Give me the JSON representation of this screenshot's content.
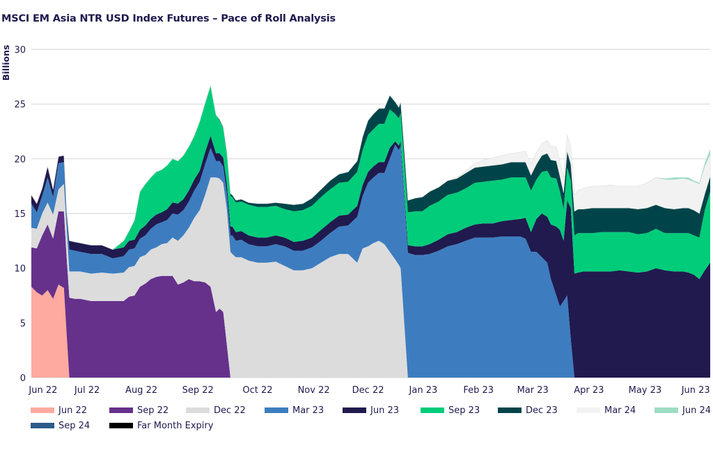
{
  "chart_data": {
    "type": "area",
    "stacked": true,
    "title": "MSCI EM Asia NTR USD Index Futures – Pace of Roll Analysis",
    "xlabel": "",
    "ylabel": "Billions",
    "ylim": [
      0,
      30
    ],
    "yticks": [
      0,
      5,
      10,
      15,
      20,
      25,
      30
    ],
    "grid": true,
    "legend_position": "bottom",
    "x_unit": "days since chart start (approx. early Jun 2022)",
    "xlim": [
      0,
      375
    ],
    "xticks": [
      {
        "label": "Jun 22",
        "x": 6.5
      },
      {
        "label": "Jul 22",
        "x": 30.8
      },
      {
        "label": "Aug 22",
        "x": 60.8
      },
      {
        "label": "Sep 22",
        "x": 92
      },
      {
        "label": "Oct 22",
        "x": 125
      },
      {
        "label": "Nov 22",
        "x": 156
      },
      {
        "label": "Dec 22",
        "x": 186
      },
      {
        "label": "Jan 23",
        "x": 216.5
      },
      {
        "label": "Feb 23",
        "x": 247
      },
      {
        "label": "Mar 23",
        "x": 277
      },
      {
        "label": "Apr 23",
        "x": 308
      },
      {
        "label": "May 23",
        "x": 339
      },
      {
        "label": "Jun 23",
        "x": 367
      }
    ],
    "x": [
      0,
      3,
      6,
      9,
      12,
      15,
      18,
      19.5,
      21,
      24,
      27,
      33,
      39,
      45,
      51,
      54,
      57,
      60,
      63,
      66,
      69,
      72,
      75,
      78,
      81,
      84,
      87,
      90,
      93,
      96,
      99,
      102,
      104,
      106,
      108,
      110,
      111,
      113,
      116,
      120,
      125,
      130,
      135,
      140,
      145,
      150,
      155,
      160,
      165,
      170,
      175,
      180,
      183,
      186,
      189,
      192,
      195,
      198,
      201,
      203,
      204,
      206,
      208,
      212,
      216,
      220,
      225,
      230,
      235,
      240,
      245,
      250,
      255,
      260,
      265,
      270,
      273,
      276,
      279,
      282,
      285,
      287,
      290,
      292,
      294,
      296,
      298,
      300,
      302,
      305,
      310,
      315,
      320,
      325,
      330,
      335,
      340,
      345,
      350,
      355,
      360,
      363,
      366,
      369,
      372,
      375
    ],
    "series": [
      {
        "name": "Jun 22",
        "color": "#ffaaa0",
        "values": [
          8.3,
          7.8,
          7.5,
          8.0,
          7.2,
          8.5,
          8.2,
          4.0,
          0,
          0,
          0,
          0,
          0,
          0,
          0,
          0,
          0,
          0,
          0,
          0,
          0,
          0,
          0,
          0,
          0,
          0,
          0,
          0,
          0,
          0,
          0,
          0,
          0,
          0,
          0,
          0,
          0,
          0,
          0,
          0,
          0,
          0,
          0,
          0,
          0,
          0,
          0,
          0,
          0,
          0,
          0,
          0,
          0,
          0,
          0,
          0,
          0,
          0,
          0,
          0,
          0,
          0,
          0,
          0,
          0,
          0,
          0,
          0,
          0,
          0,
          0,
          0,
          0,
          0,
          0,
          0,
          0,
          0,
          0,
          0,
          0,
          0,
          0,
          0,
          0,
          0,
          0,
          0,
          0,
          0,
          0,
          0,
          0,
          0,
          0,
          0,
          0,
          0,
          0,
          0,
          0,
          0,
          0,
          0,
          0,
          0
        ]
      },
      {
        "name": "Sep 22",
        "color": "#65318b",
        "values": [
          3.6,
          4.0,
          5.5,
          6.0,
          5.5,
          6.7,
          7.0,
          7.0,
          7.3,
          7.2,
          7.2,
          7.0,
          7.0,
          7.0,
          7.0,
          7.4,
          7.5,
          8.3,
          8.6,
          9.0,
          9.2,
          9.3,
          9.3,
          9.3,
          8.5,
          8.7,
          9.0,
          8.8,
          8.8,
          8.7,
          8.3,
          6.0,
          6.3,
          6.0,
          3.0,
          0,
          0,
          0,
          0,
          0,
          0,
          0,
          0,
          0,
          0,
          0,
          0,
          0,
          0,
          0,
          0,
          0,
          0,
          0,
          0,
          0,
          0,
          0,
          0,
          0,
          0,
          0,
          0,
          0,
          0,
          0,
          0,
          0,
          0,
          0,
          0,
          0,
          0,
          0,
          0,
          0,
          0,
          0,
          0,
          0,
          0,
          0,
          0,
          0,
          0,
          0,
          0,
          0,
          0,
          0,
          0,
          0,
          0,
          0,
          0,
          0,
          0,
          0,
          0,
          0,
          0,
          0,
          0,
          0,
          0,
          0
        ]
      },
      {
        "name": "Dec 22",
        "color": "#dcdcdc",
        "values": [
          1.8,
          1.8,
          2.0,
          2.0,
          2.2,
          2.0,
          2.5,
          2.7,
          2.4,
          2.5,
          2.5,
          2.5,
          2.6,
          2.5,
          2.6,
          2.7,
          2.7,
          2.7,
          2.6,
          2.7,
          2.7,
          2.9,
          3.0,
          3.5,
          4.0,
          4.3,
          4.7,
          5.8,
          6.5,
          8.0,
          10.0,
          12.3,
          11.9,
          11.8,
          12.4,
          11.5,
          11.3,
          11.0,
          11.0,
          10.7,
          10.5,
          10.5,
          10.6,
          10.2,
          9.8,
          9.8,
          10.0,
          10.5,
          11.0,
          11.3,
          11.3,
          10.5,
          11.8,
          12.0,
          12.3,
          12.5,
          12.2,
          11.5,
          10.8,
          10.3,
          10.0,
          5.0,
          0,
          0,
          0,
          0,
          0,
          0,
          0,
          0,
          0,
          0,
          0,
          0,
          0,
          0,
          0,
          0,
          0,
          0,
          0,
          0,
          0,
          0,
          0,
          0,
          0,
          0,
          0,
          0,
          0,
          0,
          0,
          0,
          0,
          0,
          0,
          0,
          0,
          0,
          0,
          0,
          0,
          0,
          0,
          0
        ]
      },
      {
        "name": "Mar 23",
        "color": "#3d7dbf",
        "values": [
          2.2,
          1.5,
          1.6,
          2.3,
          1.6,
          2.4,
          2.0,
          1.0,
          2.0,
          1.9,
          1.8,
          1.8,
          1.7,
          1.4,
          1.5,
          1.6,
          1.6,
          1.7,
          1.8,
          1.9,
          2.1,
          2.0,
          2.1,
          2.2,
          2.4,
          2.3,
          2.4,
          2.5,
          2.6,
          2.8,
          2.7,
          1.5,
          1.6,
          1.5,
          1.5,
          1.5,
          1.7,
          1.5,
          1.6,
          1.5,
          1.5,
          1.5,
          1.6,
          1.8,
          1.8,
          1.8,
          1.9,
          2.0,
          2.2,
          2.5,
          2.6,
          4.2,
          4.8,
          5.8,
          6.0,
          6.2,
          6.5,
          8.5,
          10.5,
          10.5,
          11.2,
          11.5,
          11.4,
          11.2,
          11.2,
          11.3,
          11.6,
          12.0,
          12.2,
          12.5,
          12.8,
          12.8,
          12.8,
          12.9,
          12.9,
          12.9,
          12.7,
          11.5,
          11.5,
          11.0,
          10.5,
          9.0,
          7.5,
          6.5,
          7.0,
          7.5,
          3.5,
          0,
          0,
          0,
          0,
          0,
          0,
          0,
          0,
          0,
          0,
          0,
          0,
          0,
          0,
          0,
          0,
          0,
          0,
          0
        ]
      },
      {
        "name": "Jun 23",
        "color": "#201a4f",
        "values": [
          0.8,
          0.8,
          0.7,
          1.0,
          0.7,
          0.6,
          0.6,
          0.5,
          0.8,
          0.8,
          0.8,
          0.8,
          0.8,
          0.8,
          0.8,
          0.8,
          0.8,
          0.8,
          0.9,
          0.9,
          0.9,
          0.9,
          1.0,
          1.0,
          1.0,
          1.0,
          1.0,
          1.0,
          1.0,
          1.1,
          1.1,
          0.7,
          0.7,
          0.8,
          0.8,
          0.8,
          0.8,
          0.8,
          0.8,
          0.8,
          0.8,
          0.8,
          0.8,
          0.8,
          0.8,
          0.9,
          0.9,
          1.0,
          1.0,
          1.0,
          1.0,
          1.0,
          1.0,
          1.0,
          1.0,
          1.0,
          1.0,
          1.0,
          0.3,
          0.4,
          0.4,
          0.4,
          0.7,
          0.8,
          0.8,
          0.9,
          1.0,
          1.1,
          1.1,
          1.2,
          1.2,
          1.3,
          1.3,
          1.4,
          1.5,
          1.6,
          1.9,
          1.8,
          3.0,
          4.0,
          4.2,
          5.0,
          6.3,
          7.0,
          5.5,
          8.7,
          12.0,
          9.5,
          9.6,
          9.7,
          9.7,
          9.7,
          9.7,
          9.8,
          9.7,
          9.6,
          9.7,
          10.0,
          9.8,
          9.7,
          9.7,
          9.6,
          9.4,
          9.0,
          9.8,
          10.5
        ]
      },
      {
        "name": "Sep 23",
        "color": "#00cc7a",
        "values": [
          0,
          0,
          0,
          0,
          0,
          0,
          0,
          0,
          0,
          0,
          0,
          0,
          0,
          0,
          0.6,
          0.9,
          1.8,
          3.5,
          3.8,
          3.8,
          3.9,
          3.9,
          4.0,
          4.0,
          3.9,
          4.0,
          4.0,
          4.0,
          4.5,
          4.5,
          4.6,
          3.5,
          3.0,
          2.7,
          2.7,
          2.8,
          2.7,
          2.7,
          2.7,
          2.8,
          2.8,
          2.8,
          2.7,
          2.6,
          2.8,
          2.8,
          2.9,
          3.0,
          3.0,
          3.0,
          3.0,
          3.1,
          3.2,
          3.4,
          3.4,
          3.5,
          3.5,
          3.5,
          2.5,
          2.5,
          2.6,
          2.8,
          3.0,
          3.2,
          3.2,
          3.5,
          3.5,
          3.6,
          3.6,
          3.6,
          3.8,
          3.8,
          3.9,
          3.8,
          3.9,
          3.8,
          3.7,
          3.8,
          3.6,
          3.8,
          4.2,
          4.3,
          4.4,
          3.5,
          2.9,
          3.0,
          2.5,
          3.5,
          3.6,
          3.5,
          3.5,
          3.6,
          3.6,
          3.5,
          3.6,
          3.5,
          3.5,
          3.6,
          3.4,
          3.5,
          3.5,
          3.6,
          3.6,
          3.8,
          5.5,
          6.5
        ]
      },
      {
        "name": "Dec 23",
        "color": "#004449",
        "values": [
          0,
          0,
          0,
          0,
          0,
          0,
          0,
          0,
          0,
          0,
          0,
          0,
          0,
          0,
          0,
          0,
          0,
          0,
          0,
          0,
          0,
          0,
          0,
          0,
          0,
          0,
          0,
          0,
          0,
          0,
          0,
          0,
          0.1,
          0.1,
          0.2,
          0.2,
          0.2,
          0.2,
          0.2,
          0.2,
          0.3,
          0.3,
          0.3,
          0.5,
          0.6,
          0.6,
          0.7,
          0.7,
          0.8,
          0.8,
          0.9,
          1.0,
          1.2,
          1.3,
          1.4,
          1.4,
          1.4,
          1.3,
          1.1,
          1.0,
          1.0,
          1.1,
          1.1,
          1.2,
          1.3,
          1.3,
          1.3,
          1.3,
          1.3,
          1.4,
          1.4,
          1.4,
          1.4,
          1.4,
          1.4,
          1.4,
          1.4,
          1.4,
          1.4,
          1.5,
          1.6,
          1.6,
          1.6,
          1.4,
          1.5,
          1.5,
          1.5,
          2.2,
          2.2,
          2.2,
          2.3,
          2.2,
          2.2,
          2.2,
          2.2,
          2.3,
          2.3,
          2.2,
          2.3,
          2.2,
          2.3,
          2.3,
          2.3,
          2.2,
          1.5,
          1.4
        ]
      },
      {
        "name": "Mar 24",
        "color": "#f2f2f2",
        "values": [
          0,
          0,
          0,
          0,
          0,
          0,
          0,
          0,
          0,
          0,
          0,
          0,
          0,
          0,
          0,
          0,
          0,
          0,
          0,
          0,
          0,
          0,
          0,
          0,
          0,
          0,
          0,
          0,
          0,
          0,
          0,
          0,
          0,
          0,
          0,
          0,
          0,
          0,
          0,
          0,
          0,
          0,
          0,
          0,
          0,
          0,
          0,
          0,
          0,
          0,
          0,
          0,
          0,
          0,
          0,
          0,
          0,
          0,
          0,
          0,
          0,
          0,
          0,
          0,
          0,
          0,
          0,
          0,
          0.1,
          0.2,
          0.4,
          0.6,
          0.7,
          0.8,
          0.8,
          0.9,
          1.0,
          1.0,
          1.1,
          1.1,
          1.2,
          1.3,
          1.3,
          1.3,
          1.4,
          1.5,
          1.6,
          1.5,
          1.7,
          1.9,
          2.0,
          2.0,
          2.1,
          2.0,
          2.0,
          2.1,
          2.3,
          2.5,
          2.6,
          2.7,
          2.7,
          2.6,
          2.6,
          2.7,
          2.5,
          2.0
        ]
      },
      {
        "name": "Jun 24",
        "color": "#9fdcc4",
        "values": [
          0,
          0,
          0,
          0,
          0,
          0,
          0,
          0,
          0,
          0,
          0,
          0,
          0,
          0,
          0,
          0,
          0,
          0,
          0,
          0,
          0,
          0,
          0,
          0,
          0,
          0,
          0,
          0,
          0,
          0,
          0,
          0,
          0,
          0,
          0,
          0,
          0,
          0,
          0,
          0,
          0,
          0,
          0,
          0,
          0,
          0,
          0,
          0,
          0,
          0,
          0,
          0,
          0,
          0,
          0,
          0,
          0,
          0,
          0,
          0,
          0,
          0,
          0,
          0,
          0,
          0,
          0,
          0,
          0,
          0,
          0,
          0,
          0,
          0,
          0,
          0,
          0,
          0,
          0,
          0,
          0,
          0,
          0,
          0,
          0,
          0,
          0,
          0,
          0,
          0,
          0,
          0,
          0,
          0,
          0,
          0,
          0,
          0,
          0.1,
          0.2,
          0.1,
          0.2,
          0.1,
          0.1,
          0.3,
          0.5
        ]
      },
      {
        "name": "Sep 24",
        "color": "#2b5c8a",
        "values": []
      },
      {
        "name": "Far Month Expiry",
        "color": "#000000",
        "values": []
      }
    ]
  },
  "legend": {
    "items": [
      {
        "label": "Jun 22",
        "color": "#ffaaa0"
      },
      {
        "label": "Sep 22",
        "color": "#65318b"
      },
      {
        "label": "Dec 22",
        "color": "#dcdcdc"
      },
      {
        "label": "Mar 23",
        "color": "#3d7dbf"
      },
      {
        "label": "Jun 23",
        "color": "#201a4f"
      },
      {
        "label": "Sep 23",
        "color": "#00cc7a"
      },
      {
        "label": "Dec 23",
        "color": "#004449"
      },
      {
        "label": "Mar 24",
        "color": "#f2f2f2"
      },
      {
        "label": "Jun 24",
        "color": "#9fdcc4"
      },
      {
        "label": "Sep 24",
        "color": "#2b5c8a"
      },
      {
        "label": "Far Month Expiry",
        "color": "#000000"
      }
    ]
  }
}
